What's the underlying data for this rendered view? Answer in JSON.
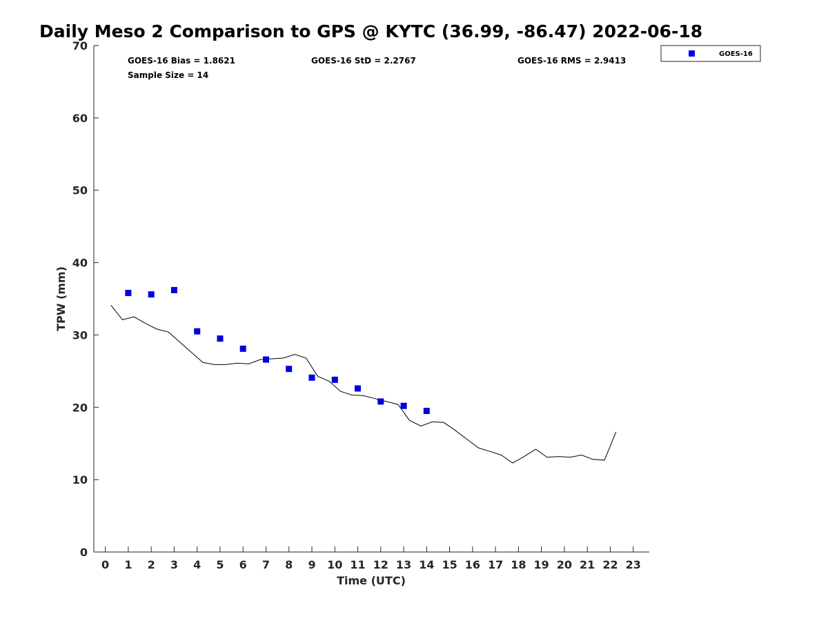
{
  "chart_data": {
    "type": "scatter",
    "title": "Daily Meso 2 Comparison to GPS @ KYTC (36.99, -86.47) 2022-06-18",
    "xlabel": "Time (UTC)",
    "ylabel": "TPW (mm)",
    "xlim": [
      -0.5,
      23.7
    ],
    "ylim": [
      0,
      70
    ],
    "x_ticks": [
      "0",
      "1",
      "2",
      "3",
      "4",
      "5",
      "6",
      "7",
      "8",
      "9",
      "10",
      "11",
      "12",
      "13",
      "14",
      "15",
      "16",
      "17",
      "18",
      "19",
      "20",
      "21",
      "22",
      "23"
    ],
    "y_ticks": [
      "0",
      "10",
      "20",
      "30",
      "40",
      "50",
      "60",
      "70"
    ],
    "grid": false,
    "legend_position": "outside-top-right",
    "stats": {
      "bias": "GOES-16 Bias = 1.8621",
      "std": "GOES-16 StD = 2.2767",
      "rms": "GOES-16 RMS = 2.9413",
      "sample": "Sample Size = 14"
    },
    "series": [
      {
        "name": "GOES-16",
        "kind": "markers",
        "marker": "square",
        "color": "#0000dd",
        "x": [
          1,
          2,
          3,
          4,
          5,
          6,
          7,
          8,
          9,
          10,
          11,
          12,
          13,
          14
        ],
        "y": [
          35.8,
          35.6,
          36.2,
          30.5,
          29.5,
          28.1,
          26.6,
          25.3,
          24.1,
          23.8,
          22.6,
          20.8,
          20.2,
          19.5
        ]
      },
      {
        "kind": "line",
        "color": "#000000",
        "x": [
          0.25,
          0.75,
          1.25,
          1.75,
          2.25,
          2.75,
          3.25,
          3.75,
          4.25,
          4.75,
          5.25,
          5.75,
          6.25,
          6.75,
          7.25,
          7.75,
          8.25,
          8.75,
          9.25,
          9.75,
          10.25,
          10.75,
          11.25,
          11.75,
          12.25,
          12.75,
          13.25,
          13.75,
          14.25,
          14.75,
          15.25,
          15.75,
          16.25,
          16.75,
          17.25,
          17.75,
          18.25,
          18.75,
          19.25,
          19.75,
          20.25,
          20.75,
          21.25,
          21.75,
          22.25
        ],
        "y": [
          34.1,
          32.1,
          32.5,
          31.6,
          30.8,
          30.4,
          29.0,
          27.6,
          26.2,
          25.9,
          25.9,
          26.1,
          26.0,
          26.6,
          26.7,
          26.8,
          27.3,
          26.8,
          24.3,
          23.6,
          22.2,
          21.7,
          21.6,
          21.2,
          20.8,
          20.4,
          18.2,
          17.4,
          18.0,
          17.9,
          16.8,
          15.6,
          14.4,
          13.9,
          13.4,
          12.3,
          13.2,
          14.2,
          13.1,
          13.2,
          13.1,
          13.4,
          12.8,
          12.7,
          16.6
        ]
      }
    ]
  }
}
